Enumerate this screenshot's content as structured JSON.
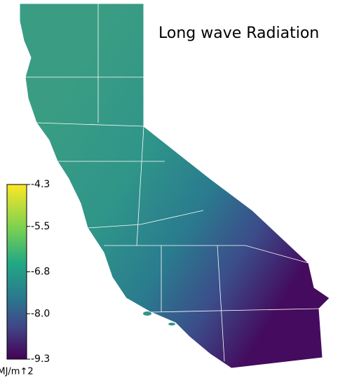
{
  "title": "Long wave Radiation",
  "colorbar": {
    "label": "MJ/m↑2",
    "range": [
      -9.3,
      -4.3
    ],
    "ticks": [
      -4.3,
      -5.5,
      -6.8,
      {
        "value": -8,
        "label": "-8.0"
      },
      -9.3
    ]
  }
}
